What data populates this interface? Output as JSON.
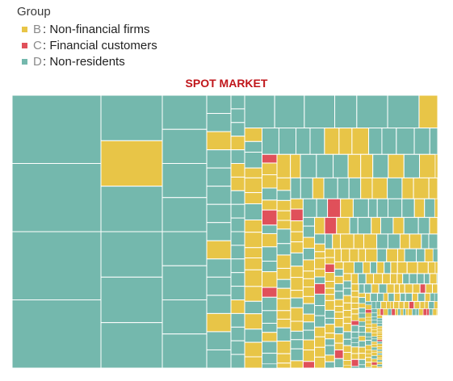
{
  "chart_data": {
    "type": "treemap",
    "title": "SPOT MARKET",
    "legend": {
      "title": "Group",
      "placement": "top-left",
      "items": [
        {
          "key": "B",
          "label": ": Non-financial firms",
          "color": "#e8c547"
        },
        {
          "key": "C",
          "label": ": Financial customers",
          "color": "#e0505a"
        },
        {
          "key": "D",
          "label": ": Non-residents",
          "color": "#74b8ad"
        }
      ]
    },
    "columns": [
      {
        "cells": [
          "D",
          "D",
          "D",
          "D"
        ]
      },
      {
        "cells": [
          "D",
          "B",
          "D",
          "D",
          "D",
          "D"
        ]
      },
      {
        "cells": [
          "D",
          "D",
          "D",
          "D",
          "D",
          "D",
          "D",
          "D"
        ]
      },
      {
        "cells": [
          "D",
          "D",
          "B",
          "D",
          "D",
          "D",
          "D",
          "D",
          "B",
          "D",
          "D",
          "D",
          "B",
          "D",
          "D"
        ]
      },
      {
        "cells": [
          "D",
          "D",
          "D",
          "B",
          "D",
          "B",
          "B",
          "D",
          "D",
          "D",
          "D",
          "D",
          "D",
          "D",
          "D",
          "B",
          "D",
          "D",
          "D",
          "D"
        ]
      }
    ],
    "tail_mix": {
      "B": 0.55,
      "C": 0.08,
      "D": 0.37
    },
    "empty_region": "bottom-right"
  }
}
